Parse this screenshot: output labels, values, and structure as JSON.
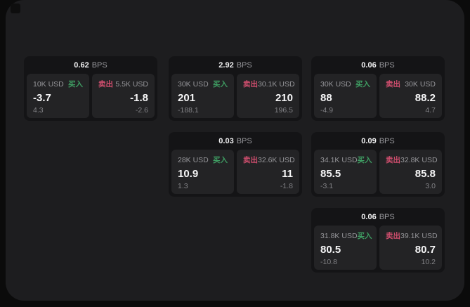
{
  "labels": {
    "buy": "买入",
    "sell": "卖出",
    "bps_suffix": "BPS"
  },
  "colors": {
    "buy_green": "#3f9e63",
    "sell_red": "#cf4e6e",
    "panel_bg": "#1d1d1f",
    "card_bg": "#141416",
    "tile_bg": "#232325"
  },
  "cards": [
    {
      "bps": "0.62",
      "buy": {
        "size": "10K USD",
        "price": "-3.7",
        "delta": "4.3"
      },
      "sell": {
        "size": "5.5K USD",
        "price": "-1.8",
        "delta": "-2.6"
      }
    },
    {
      "bps": "2.92",
      "buy": {
        "size": "30K USD",
        "price": "201",
        "delta": "-188.1"
      },
      "sell": {
        "size": "30.1K USD",
        "price": "210",
        "delta": "196.5"
      }
    },
    {
      "bps": "0.06",
      "buy": {
        "size": "30K USD",
        "price": "88",
        "delta": "-4.9"
      },
      "sell": {
        "size": "30K USD",
        "price": "88.2",
        "delta": "4.7"
      }
    },
    {
      "bps": "0.03",
      "buy": {
        "size": "28K USD",
        "price": "10.9",
        "delta": "1.3"
      },
      "sell": {
        "size": "32.6K USD",
        "price": "11",
        "delta": "-1.8"
      }
    },
    {
      "bps": "0.09",
      "buy": {
        "size": "34.1K USD",
        "price": "85.5",
        "delta": "-3.1"
      },
      "sell": {
        "size": "32.8K USD",
        "price": "85.8",
        "delta": "3.0"
      }
    },
    {
      "bps": "0.06",
      "buy": {
        "size": "31.8K USD",
        "price": "80.5",
        "delta": "-10.8"
      },
      "sell": {
        "size": "39.1K USD",
        "price": "80.7",
        "delta": "10.2"
      }
    }
  ]
}
